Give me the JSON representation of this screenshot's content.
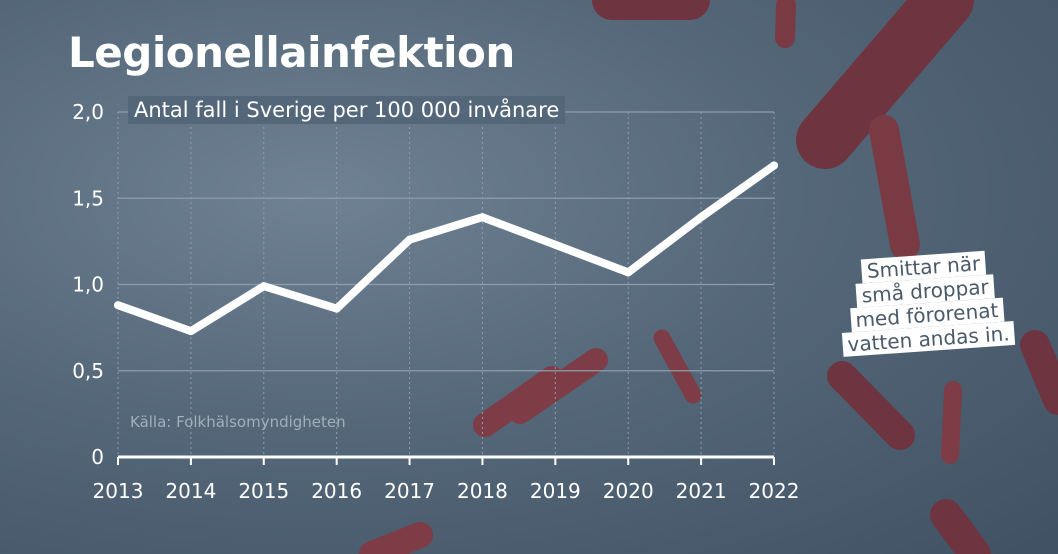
{
  "colors": {
    "background": "#55687a",
    "line": "#ffffff",
    "grid": "#8d9dad",
    "bacteria": "#7a3a44"
  },
  "note": {
    "lines": [
      "Smittar när",
      "små droppar",
      "med förorenat",
      "vatten andas in."
    ]
  },
  "chart_data": {
    "type": "line",
    "title": "Legionellainfektion",
    "subtitle": "Antal fall i Sverige per 100 000 invånare",
    "source": "Källa: Folkhälsomyndigheten",
    "xlabel": "",
    "ylabel": "",
    "categories": [
      "2013",
      "2014",
      "2015",
      "2016",
      "2017",
      "2018",
      "2019",
      "2020",
      "2021",
      "2022"
    ],
    "series": [
      {
        "values": [
          0.88,
          0.73,
          0.99,
          0.86,
          1.26,
          1.39,
          1.23,
          1.07,
          1.39,
          1.69
        ]
      }
    ],
    "ylim": [
      0,
      2.0
    ],
    "yticks": [
      "0",
      "0,5",
      "1,0",
      "1,5",
      "2,0"
    ],
    "ytick_values": [
      0,
      0.5,
      1.0,
      1.5,
      2.0
    ],
    "grid": "horizontal and vertical dotted",
    "legend": "none"
  }
}
